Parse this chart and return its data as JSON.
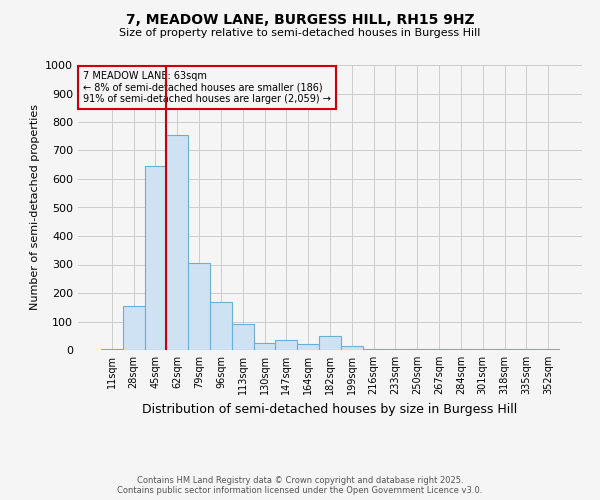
{
  "title1": "7, MEADOW LANE, BURGESS HILL, RH15 9HZ",
  "title2": "Size of property relative to semi-detached houses in Burgess Hill",
  "xlabel": "Distribution of semi-detached houses by size in Burgess Hill",
  "ylabel": "Number of semi-detached properties",
  "categories": [
    "11sqm",
    "28sqm",
    "45sqm",
    "62sqm",
    "79sqm",
    "96sqm",
    "113sqm",
    "130sqm",
    "147sqm",
    "164sqm",
    "182sqm",
    "199sqm",
    "216sqm",
    "233sqm",
    "250sqm",
    "267sqm",
    "284sqm",
    "301sqm",
    "318sqm",
    "335sqm",
    "352sqm"
  ],
  "values": [
    3,
    155,
    645,
    755,
    305,
    170,
    90,
    25,
    35,
    20,
    50,
    15,
    5,
    5,
    2,
    2,
    2,
    2,
    2,
    2,
    2
  ],
  "bar_color": "#cfe2f3",
  "bar_edge_color": "#6baed6",
  "red_line_index": 3,
  "property_label": "7 MEADOW LANE: 63sqm",
  "annotation_line1": "← 8% of semi-detached houses are smaller (186)",
  "annotation_line2": "91% of semi-detached houses are larger (2,059) →",
  "annotation_box_color": "#cc0000",
  "ylim": [
    0,
    1000
  ],
  "yticks": [
    0,
    100,
    200,
    300,
    400,
    500,
    600,
    700,
    800,
    900,
    1000
  ],
  "footer1": "Contains HM Land Registry data © Crown copyright and database right 2025.",
  "footer2": "Contains public sector information licensed under the Open Government Licence v3.0.",
  "bg_color": "#f5f5f5"
}
